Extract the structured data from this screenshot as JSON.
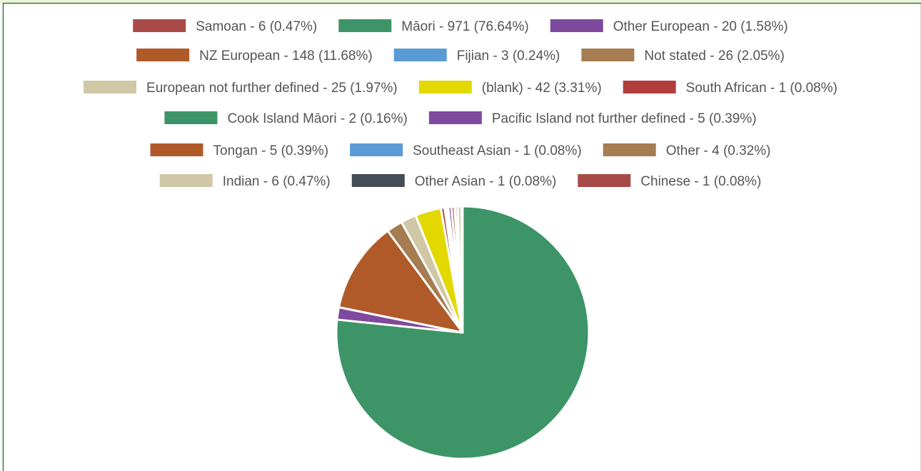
{
  "colors": {
    "frame_border": "#2e7d4f",
    "top_strip": "#f2f4d9",
    "text": "#555555"
  },
  "chart_data": {
    "type": "pie",
    "title": "",
    "legend_position": "top",
    "series": [
      {
        "label": "Samoan - 6 (0.47%)",
        "name": "Samoan",
        "value": 6,
        "percent": 0.47,
        "color": "#a84a47"
      },
      {
        "label": "Māori  - 971 (76.64%)",
        "name": "Māori",
        "value": 971,
        "percent": 76.64,
        "color": "#3d9466"
      },
      {
        "label": "Other European - 20 (1.58%)",
        "name": "Other European",
        "value": 20,
        "percent": 1.58,
        "color": "#7e4a9e"
      },
      {
        "label": "NZ European - 148 (11.68%)",
        "name": "NZ European",
        "value": 148,
        "percent": 11.68,
        "color": "#b05a2a"
      },
      {
        "label": "Fijian - 3 (0.24%)",
        "name": "Fijian",
        "value": 3,
        "percent": 0.24,
        "color": "#5b9bd5"
      },
      {
        "label": "Not stated - 26 (2.05%)",
        "name": "Not stated",
        "value": 26,
        "percent": 2.05,
        "color": "#a67c52"
      },
      {
        "label": "European not further defined - 25 (1.97%)",
        "name": "European not further defined",
        "value": 25,
        "percent": 1.97,
        "color": "#cfc7a5"
      },
      {
        "label": "(blank) - 42 (3.31%)",
        "name": "(blank)",
        "value": 42,
        "percent": 3.31,
        "color": "#e3d800"
      },
      {
        "label": "South African - 1 (0.08%)",
        "name": "South African",
        "value": 1,
        "percent": 0.08,
        "color": "#b23d3d"
      },
      {
        "label": "Cook Island Māori  - 2 (0.16%)",
        "name": "Cook Island Māori",
        "value": 2,
        "percent": 0.16,
        "color": "#3d9466"
      },
      {
        "label": "Pacific Island not further defined - 5 (0.39%)",
        "name": "Pacific Island not further defined",
        "value": 5,
        "percent": 0.39,
        "color": "#7e4a9e"
      },
      {
        "label": "Tongan - 5 (0.39%)",
        "name": "Tongan",
        "value": 5,
        "percent": 0.39,
        "color": "#b05a2a"
      },
      {
        "label": "Southeast Asian - 1 (0.08%)",
        "name": "Southeast Asian",
        "value": 1,
        "percent": 0.08,
        "color": "#5b9bd5"
      },
      {
        "label": "Other - 4 (0.32%)",
        "name": "Other",
        "value": 4,
        "percent": 0.32,
        "color": "#a67c52"
      },
      {
        "label": "Indian - 6 (0.47%)",
        "name": "Indian",
        "value": 6,
        "percent": 0.47,
        "color": "#cfc7a5"
      },
      {
        "label": "Other Asian - 1 (0.08%)",
        "name": "Other Asian",
        "value": 1,
        "percent": 0.08,
        "color": "#444c56"
      },
      {
        "label": "Chinese - 1 (0.08%)",
        "name": "Chinese",
        "value": 1,
        "percent": 0.08,
        "color": "#a84a47"
      }
    ],
    "slice_order": [
      "Māori",
      "Other European",
      "NZ European",
      "Not stated",
      "European not further defined",
      "(blank)",
      "Samoan",
      "Fijian",
      "South African",
      "Cook Island Māori",
      "Pacific Island not further defined",
      "Tongan",
      "Southeast Asian",
      "Other",
      "Indian",
      "Other Asian",
      "Chinese"
    ]
  }
}
